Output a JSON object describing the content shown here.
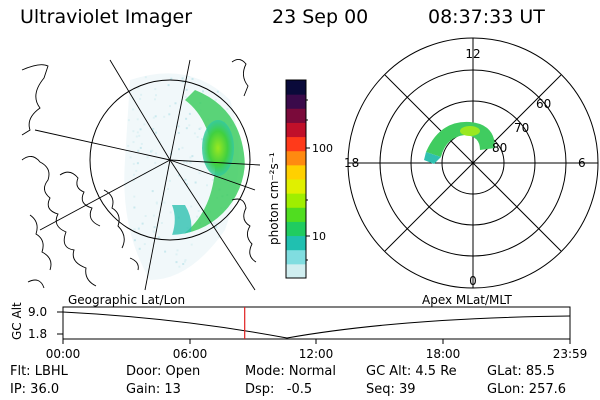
{
  "header": {
    "instrument": "Ultraviolet Imager",
    "date": "23 Sep 00",
    "time": "08:37:33 UT"
  },
  "colorbar": {
    "unit_label": "photon cm⁻²s⁻¹",
    "ticks": [
      "100",
      "10"
    ],
    "colors": [
      "#0a0a3a",
      "#3a0a4a",
      "#7a0a3a",
      "#c0102a",
      "#ff3a1a",
      "#ff8a10",
      "#ffd000",
      "#e0f000",
      "#a0ee00",
      "#50dd20",
      "#20cc60",
      "#20c0b0",
      "#80dde0",
      "#d0eef0"
    ]
  },
  "polar_plot": {
    "mlt_labels": {
      "top": "12",
      "left": "18",
      "right": "6",
      "bottom": "0"
    },
    "lat_labels": [
      "60",
      "70",
      "80"
    ]
  },
  "timeline": {
    "y_axis_label": "GC Alt",
    "y_ticks": [
      "9.0",
      "1.8"
    ],
    "left_caption": "Geographic Lat/Lon",
    "right_caption": "Apex MLat/MLT",
    "x_ticks": [
      "00:00",
      "06:00",
      "12:00",
      "18:00",
      "23:59"
    ],
    "current_time_marker_hours": 8.6
  },
  "info": {
    "row1": {
      "filter": "Flt: LBHL",
      "door": "Door: Open",
      "mode": "Mode: Normal",
      "gc_alt": "GC Alt: 4.5 Re",
      "glat": "GLat: 85.5"
    },
    "row2": {
      "ip": "IP: 36.0",
      "gain": "Gain: 13",
      "dsp": "Dsp:   -0.5",
      "seq": "Seq: 39",
      "glon": "GLon: 257.6"
    }
  }
}
